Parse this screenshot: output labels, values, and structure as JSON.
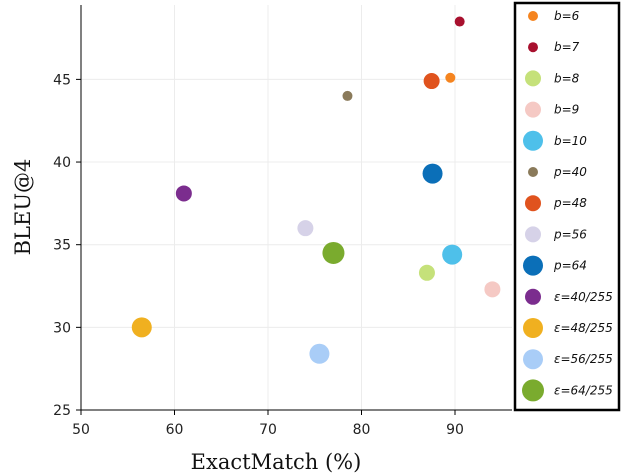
{
  "chart_data": {
    "type": "scatter",
    "xlabel": "ExactMatch (%)",
    "ylabel": "BLEU@4",
    "xlim": [
      50,
      95
    ],
    "ylim": [
      25,
      49.5
    ],
    "xticks": [
      50,
      60,
      70,
      80,
      90
    ],
    "yticks": [
      25,
      30,
      35,
      40,
      45
    ],
    "grid": true,
    "legend_position": "right",
    "series": [
      {
        "name": "b=6",
        "color": "#f5841f",
        "size": "small",
        "points": [
          [
            89.5,
            45.1
          ]
        ]
      },
      {
        "name": "b=7",
        "color": "#a8102e",
        "size": "small",
        "points": [
          [
            90.5,
            48.5
          ]
        ]
      },
      {
        "name": "b=8",
        "color": "#c5e17a",
        "size": "medium",
        "points": [
          [
            87.0,
            33.3
          ]
        ]
      },
      {
        "name": "b=9",
        "color": "#f5c9c4",
        "size": "medium",
        "points": [
          [
            94.0,
            32.3
          ]
        ]
      },
      {
        "name": "b=10",
        "color": "#4ec0ea",
        "size": "large",
        "points": [
          [
            89.7,
            34.4
          ]
        ]
      },
      {
        "name": "p=40",
        "color": "#8a7a5a",
        "size": "small",
        "points": [
          [
            78.5,
            44.0
          ]
        ]
      },
      {
        "name": "p=48",
        "color": "#e0531e",
        "size": "medium",
        "points": [
          [
            87.5,
            44.9
          ]
        ]
      },
      {
        "name": "p=56",
        "color": "#d6d2e8",
        "size": "medium",
        "points": [
          [
            74.0,
            36.0
          ]
        ]
      },
      {
        "name": "p=64",
        "color": "#0b6fb8",
        "size": "large",
        "points": [
          [
            87.6,
            39.3
          ]
        ]
      },
      {
        "name": "ε=40/255",
        "color": "#7b2d8e",
        "size": "medium",
        "points": [
          [
            61.0,
            38.1
          ]
        ]
      },
      {
        "name": "ε=48/255",
        "color": "#f0b020",
        "size": "large",
        "points": [
          [
            56.5,
            30.0
          ]
        ]
      },
      {
        "name": "ε=56/255",
        "color": "#a9cdf7",
        "size": "large",
        "points": [
          [
            75.5,
            28.4
          ]
        ]
      },
      {
        "name": "ε=64/255",
        "color": "#7aab2e",
        "size": "xlarge",
        "points": [
          [
            77.0,
            34.5
          ]
        ]
      }
    ]
  }
}
